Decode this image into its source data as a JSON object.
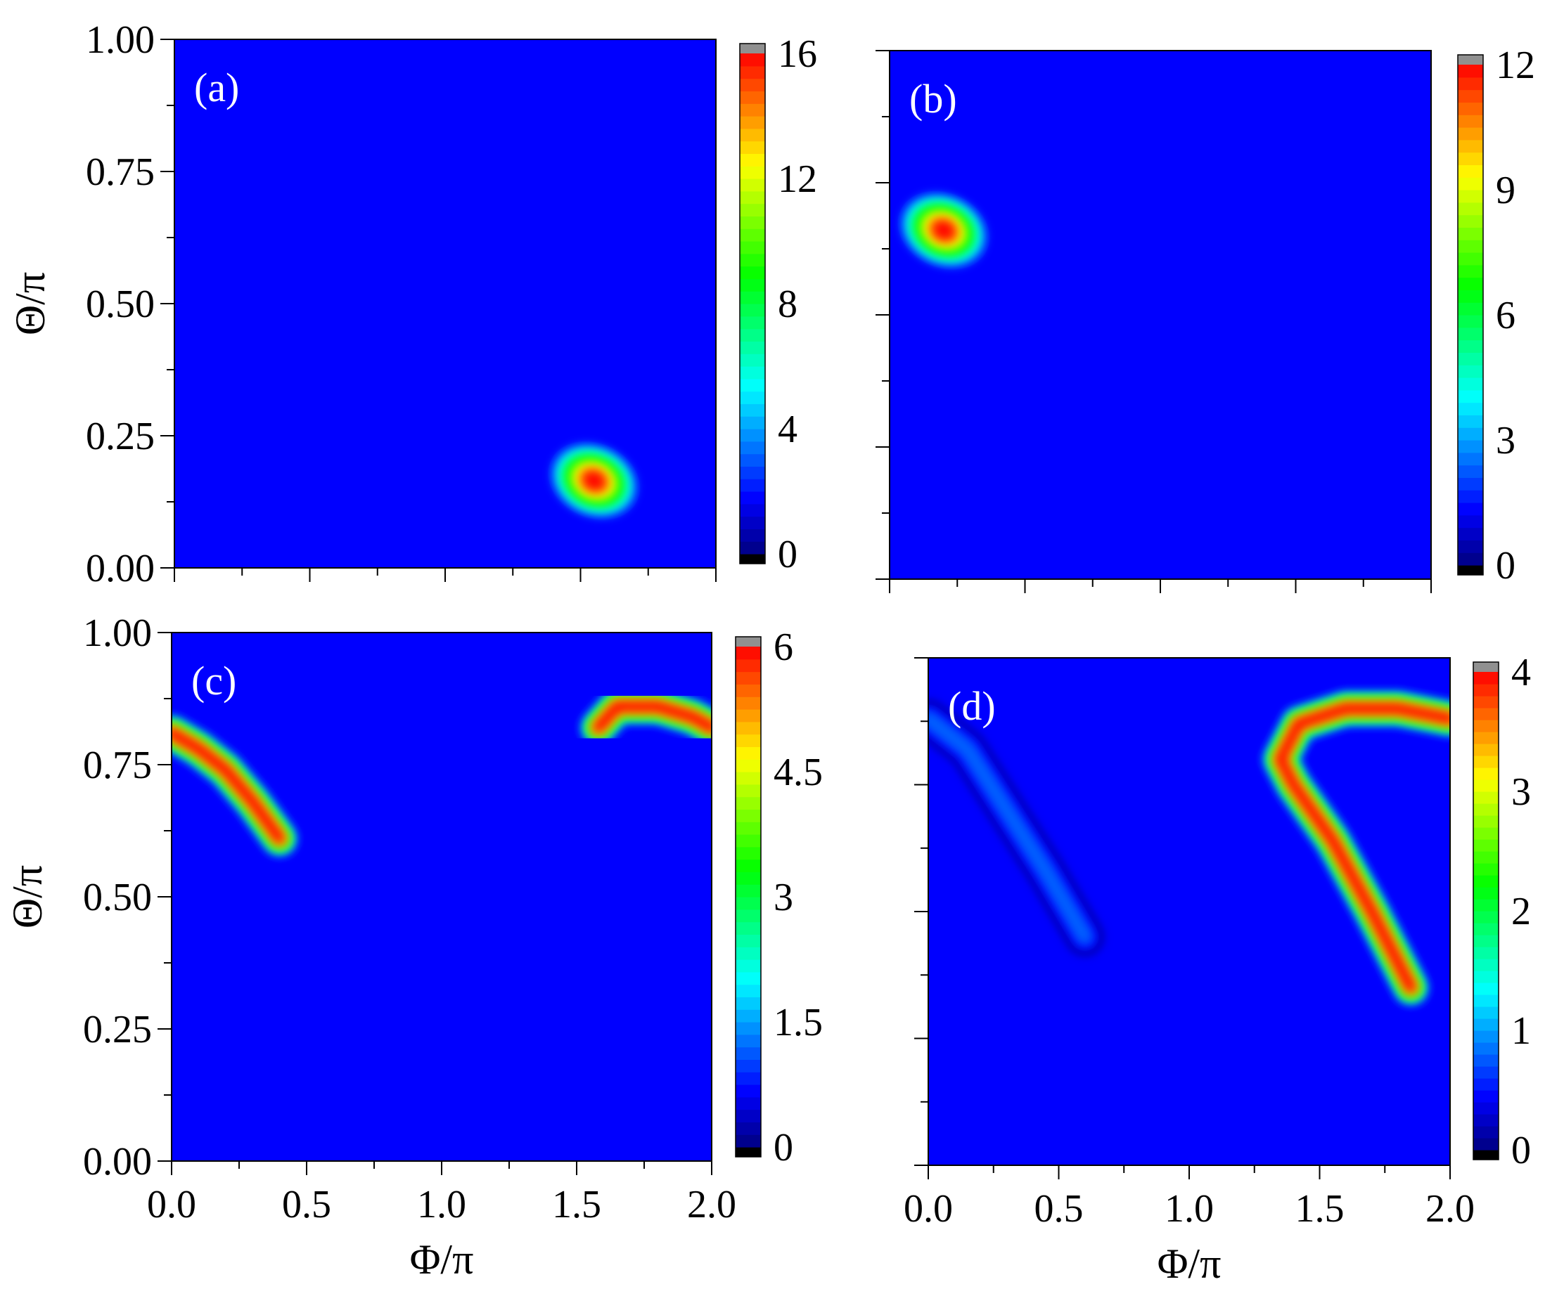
{
  "figure": {
    "colormap": [
      "#000080",
      "#0000ff",
      "#0080ff",
      "#00ffff",
      "#00ff80",
      "#00ff00",
      "#80ff00",
      "#ffff00",
      "#ff8000",
      "#ff0000"
    ],
    "background_color": "#0000ff",
    "overflow_color": "#909090",
    "underflow_color": "#000000"
  },
  "chart_data": [
    {
      "type": "heatmap",
      "panel_label": "(a)",
      "xlabel": "",
      "ylabel": "Θ/π",
      "xlim": [
        0,
        2
      ],
      "ylim": [
        0,
        1
      ],
      "x_tick_labels": [],
      "y_tick_labels": [
        "0.00",
        "0.25",
        "0.50",
        "0.75",
        "1.00"
      ],
      "colorbar": {
        "range": [
          0,
          16
        ],
        "tick_labels": [
          "0",
          "4",
          "8",
          "12",
          "16"
        ]
      },
      "features": [
        {
          "shape": "peak",
          "phi": 1.55,
          "theta": 0.165,
          "peak_value": 16
        }
      ]
    },
    {
      "type": "heatmap",
      "panel_label": "(b)",
      "xlabel": "",
      "ylabel": "",
      "xlim": [
        0,
        2
      ],
      "ylim": [
        0,
        1
      ],
      "x_tick_labels": [],
      "y_tick_labels": [],
      "colorbar": {
        "range": [
          0,
          12
        ],
        "tick_labels": [
          "0",
          "3",
          "6",
          "9",
          "12"
        ]
      },
      "features": [
        {
          "shape": "peak",
          "phi": 0.2,
          "theta": 0.66,
          "peak_value": 12
        }
      ]
    },
    {
      "type": "heatmap",
      "panel_label": "(c)",
      "xlabel": "Φ/π",
      "ylabel": "Θ/π",
      "xlim": [
        0,
        2
      ],
      "ylim": [
        0,
        1
      ],
      "x_tick_labels": [
        "0.0",
        "0.5",
        "1.0",
        "1.5",
        "2.0"
      ],
      "y_tick_labels": [
        "0.00",
        "0.25",
        "0.50",
        "0.75",
        "1.00"
      ],
      "colorbar": {
        "range": [
          0,
          6
        ],
        "tick_labels": [
          "0",
          "1.5",
          "3",
          "4.5",
          "6"
        ]
      },
      "features": [
        {
          "shape": "ridge",
          "path": [
            [
              0.0,
              0.81
            ],
            [
              0.1,
              0.78
            ],
            [
              0.2,
              0.74
            ],
            [
              0.3,
              0.68
            ],
            [
              0.4,
              0.61
            ]
          ],
          "peak_value": 6
        },
        {
          "shape": "ridge",
          "path": [
            [
              1.58,
              0.82
            ],
            [
              1.65,
              0.86
            ],
            [
              1.8,
              0.86
            ],
            [
              1.93,
              0.84
            ],
            [
              2.0,
              0.82
            ]
          ],
          "peak_value": 6
        }
      ]
    },
    {
      "type": "heatmap",
      "panel_label": "(d)",
      "xlabel": "Φ/π",
      "ylabel": "",
      "xlim": [
        0,
        2
      ],
      "ylim": [
        0,
        1
      ],
      "x_tick_labels": [
        "0.0",
        "0.5",
        "1.0",
        "1.5",
        "2.0"
      ],
      "y_tick_labels": [],
      "colorbar": {
        "range": [
          0,
          4
        ],
        "tick_labels": [
          "0",
          "1",
          "2",
          "3",
          "4"
        ]
      },
      "features": [
        {
          "shape": "ridge",
          "path": [
            [
              0.0,
              0.88
            ],
            [
              0.15,
              0.82
            ],
            [
              0.3,
              0.7
            ],
            [
              0.45,
              0.58
            ],
            [
              0.6,
              0.45
            ]
          ],
          "peak_value": 0.8
        },
        {
          "shape": "ridge",
          "path": [
            [
              1.85,
              0.35
            ],
            [
              1.7,
              0.5
            ],
            [
              1.55,
              0.64
            ],
            [
              1.4,
              0.75
            ],
            [
              1.35,
              0.8
            ],
            [
              1.42,
              0.87
            ],
            [
              1.6,
              0.9
            ],
            [
              1.8,
              0.9
            ],
            [
              2.0,
              0.88
            ]
          ],
          "peak_value": 4
        }
      ]
    }
  ]
}
